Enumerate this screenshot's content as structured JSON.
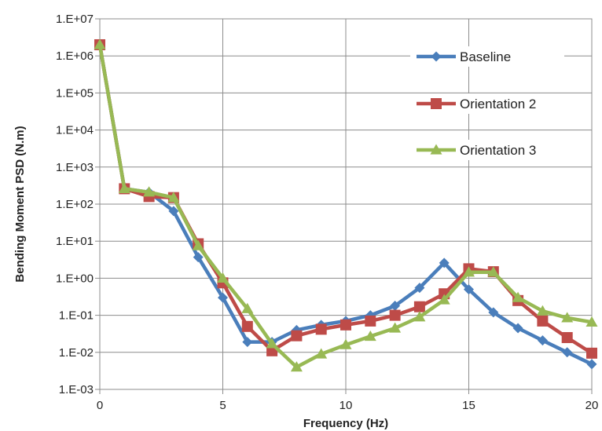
{
  "chart_data": {
    "type": "line",
    "title": "",
    "xlabel": "Frequency (Hz)",
    "ylabel": "Bending Moment PSD (N.m)",
    "xlim": [
      0,
      20
    ],
    "ylim": [
      0.001,
      10000000
    ],
    "y_scale": "log",
    "grid": true,
    "legend_position": "top-right",
    "x_ticks": [
      0,
      5,
      10,
      15,
      20
    ],
    "x_tick_labels": [
      "0",
      "5",
      "10",
      "15",
      "20"
    ],
    "y_ticks": [
      0.001,
      0.01,
      0.1,
      1,
      10,
      100,
      1000,
      10000,
      100000,
      1000000,
      10000000
    ],
    "y_tick_labels": [
      "1.E-03",
      "1.E-02",
      "1.E-01",
      "1.E+00",
      "1.E+01",
      "1.E+02",
      "1.E+03",
      "1.E+04",
      "1.E+05",
      "1.E+06",
      "1.E+07"
    ],
    "x": [
      0,
      1,
      2,
      3,
      4,
      5,
      6,
      7,
      8,
      9,
      10,
      11,
      12,
      13,
      14,
      15,
      16,
      17,
      18,
      19,
      20
    ],
    "series": [
      {
        "name": "Baseline",
        "color": "#4a7ebb",
        "marker": "diamond",
        "values": [
          2000000,
          260,
          210,
          65,
          3.7,
          0.3,
          0.019,
          0.019,
          0.04,
          0.055,
          0.07,
          0.1,
          0.18,
          0.55,
          2.6,
          0.5,
          0.12,
          0.045,
          0.021,
          0.01,
          0.0048
        ]
      },
      {
        "name": "Orientation 2",
        "color": "#be4b48",
        "marker": "square",
        "values": [
          2000000,
          260,
          160,
          150,
          8.5,
          0.75,
          0.05,
          0.011,
          0.028,
          0.042,
          0.055,
          0.07,
          0.1,
          0.17,
          0.38,
          1.8,
          1.5,
          0.25,
          0.07,
          0.025,
          0.0095
        ]
      },
      {
        "name": "Orientation 3",
        "color": "#98b954",
        "marker": "triangle",
        "values": [
          2000000,
          260,
          210,
          150,
          7.5,
          1.0,
          0.15,
          0.017,
          0.004,
          0.009,
          0.016,
          0.027,
          0.045,
          0.09,
          0.26,
          1.45,
          1.45,
          0.3,
          0.13,
          0.085,
          0.065
        ]
      }
    ]
  }
}
